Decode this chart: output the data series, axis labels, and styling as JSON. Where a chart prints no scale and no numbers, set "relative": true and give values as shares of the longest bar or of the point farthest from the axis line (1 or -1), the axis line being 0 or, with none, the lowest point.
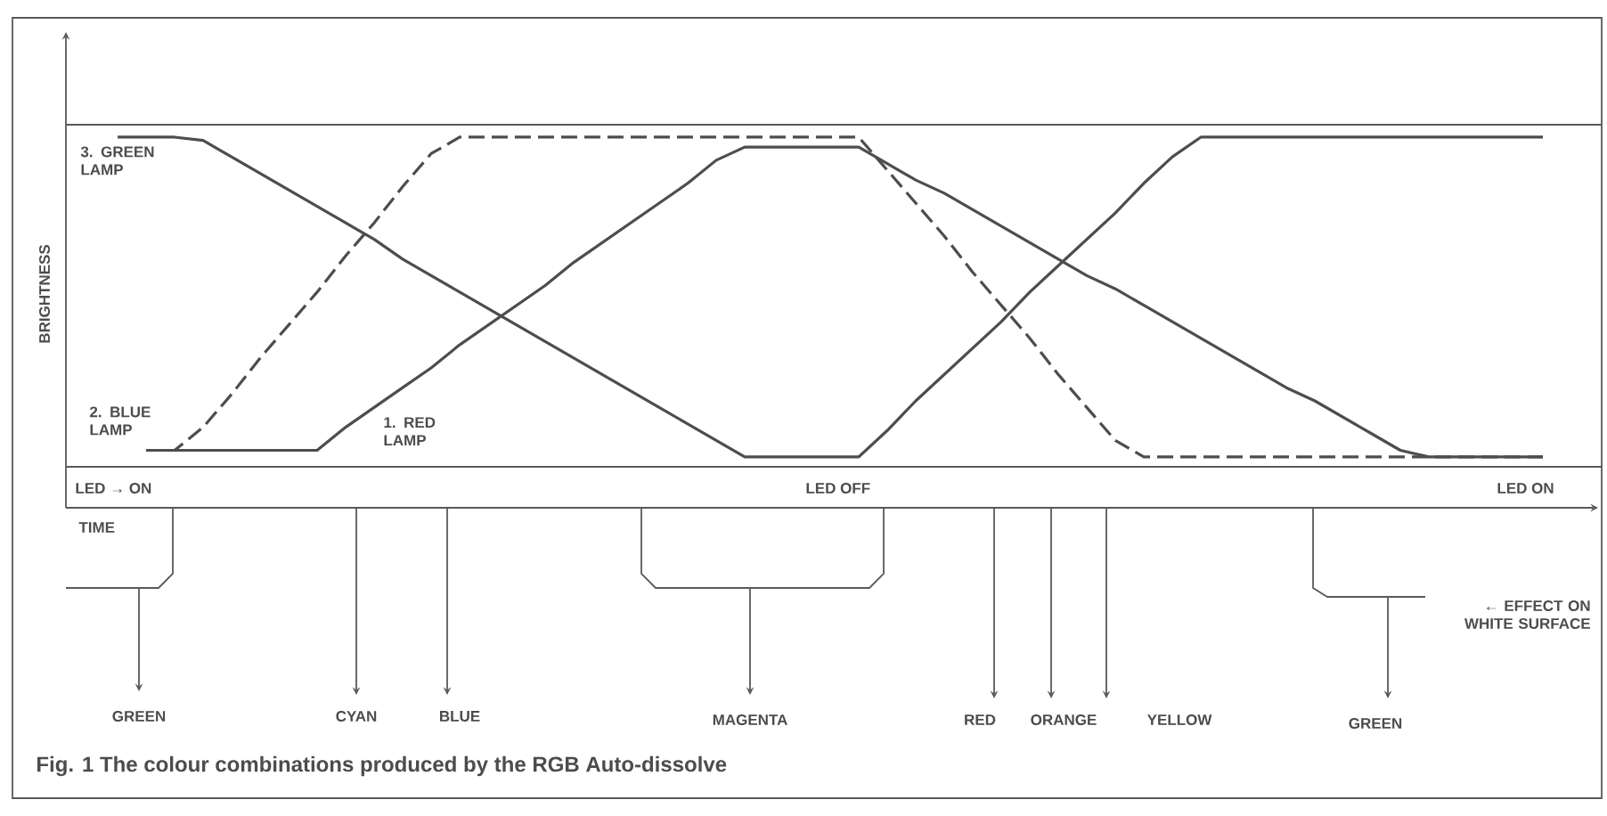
{
  "chart_data": {
    "type": "line",
    "relative": true,
    "title": "Fig. 1 The colour combinations produced by the RGB Auto-dissolve",
    "xlabel": "TIME",
    "ylabel": "BRIGHTNESS",
    "categories": [
      null,
      null,
      null,
      null,
      null,
      null,
      null,
      null,
      null,
      null,
      null,
      null,
      null,
      null,
      null,
      null,
      null,
      null,
      null,
      null,
      null,
      null,
      null,
      null,
      null,
      null,
      null,
      null,
      null,
      null,
      null,
      null,
      null,
      null,
      null,
      null,
      null,
      null,
      null,
      null,
      null,
      null,
      null,
      null,
      null,
      null,
      null,
      null,
      null,
      null,
      null
    ],
    "series": [
      {
        "name": "3. GREEN LAMP",
        "color": "#4d4d4d",
        "line_style": "solid",
        "values": [
          1,
          1,
          1,
          0.99,
          0.94,
          0.89,
          0.84,
          0.79,
          0.74,
          0.69,
          0.63,
          0.58,
          0.53,
          0.48,
          0.43,
          0.38,
          0.33,
          0.28,
          0.23,
          0.18,
          0.13,
          0.08,
          0.03,
          0.03,
          0.03,
          0.03,
          0.03,
          0.11,
          0.2,
          0.28,
          0.36,
          0.44,
          0.53,
          0.61,
          0.69,
          0.77,
          0.86,
          0.94,
          1,
          1,
          1,
          1,
          1,
          1,
          1,
          1,
          1,
          1,
          1,
          1,
          1
        ]
      },
      {
        "name": "2. BLUE LAMP",
        "color": "#4d4d4d",
        "line_style": "dashed",
        "values": [
          null,
          0.05,
          0.05,
          0.12,
          0.22,
          0.33,
          0.43,
          0.53,
          0.64,
          0.74,
          0.85,
          0.95,
          1,
          1,
          1,
          1,
          1,
          1,
          1,
          1,
          1,
          1,
          1,
          1,
          1,
          1,
          1,
          0.9,
          0.8,
          0.7,
          0.59,
          0.49,
          0.39,
          0.28,
          0.18,
          0.08,
          0.03,
          0.03,
          0.03,
          0.03,
          0.03,
          0.03,
          0.03,
          0.03,
          0.03,
          0.03,
          0.03,
          0.03,
          0.03,
          0.03,
          0.03
        ]
      },
      {
        "name": "1. RED LAMP",
        "color": "#4d4d4d",
        "line_style": "solid",
        "values": [
          null,
          0.05,
          0.05,
          0.05,
          0.05,
          0.05,
          0.05,
          0.05,
          0.12,
          0.18,
          0.24,
          0.3,
          0.37,
          0.43,
          0.49,
          0.55,
          0.62,
          0.68,
          0.74,
          0.8,
          0.86,
          0.93,
          0.97,
          0.97,
          0.97,
          0.97,
          0.97,
          0.92,
          0.87,
          0.83,
          0.78,
          0.73,
          0.68,
          0.63,
          0.58,
          0.54,
          0.49,
          0.44,
          0.39,
          0.34,
          0.29,
          0.24,
          0.2,
          0.15,
          0.1,
          0.05,
          0.03,
          0.03,
          0.03,
          0.03,
          0.03
        ]
      }
    ],
    "annotations": [
      "LED → ON",
      "LED OFF",
      "LED ON",
      "GREEN",
      "CYAN",
      "BLUE",
      "MAGENTA",
      "RED",
      "ORANGE",
      "YELLOW",
      "GREEN",
      "← EFFECT ON WHITE SURFACE"
    ]
  }
}
